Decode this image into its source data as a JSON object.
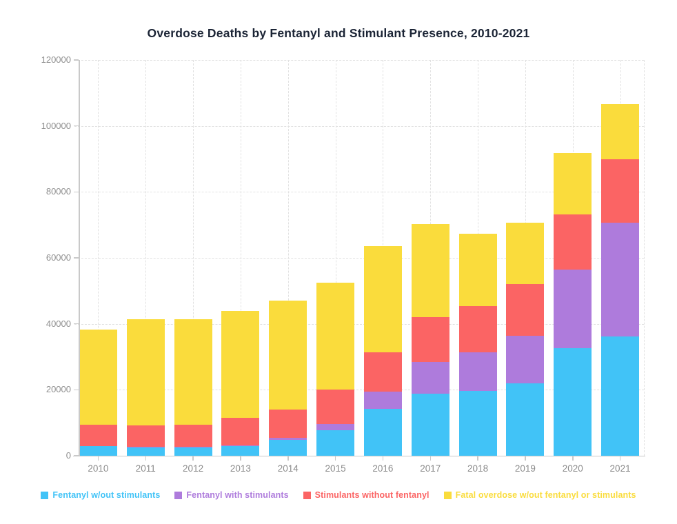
{
  "title": "Overdose Deaths by Fentanyl and Stimulant Presence, 2010-2021",
  "colors": {
    "fentanyl_without_stimulants": "#41C3F7",
    "fentanyl_with_stimulants": "#AE7BDC",
    "stimulants_without_fentanyl": "#FB6464",
    "neither": "#FADC3C",
    "title_text": "#1B2435",
    "axis_text": "#8E8E8E",
    "axis_line": "#C9C9C9",
    "grid_line": "#E1E1E1",
    "background": "#FFFFFF"
  },
  "y_axis": {
    "ticks": [
      0,
      20000,
      40000,
      60000,
      80000,
      100000,
      120000
    ],
    "max": 120000
  },
  "x_axis": {
    "categories": [
      "2010",
      "2011",
      "2012",
      "2013",
      "2014",
      "2015",
      "2016",
      "2017",
      "2018",
      "2019",
      "2020",
      "2021"
    ]
  },
  "legend": [
    {
      "label": "Fentanyl w/out stimulants",
      "color": "#41C3F7"
    },
    {
      "label": "Fentanyl with stimulants",
      "color": "#AE7BDC"
    },
    {
      "label": "Stimulants without fentanyl",
      "color": "#FB6464"
    },
    {
      "label": "Fatal overdose w/out fentanyl or stimulants",
      "color": "#FADC3C"
    }
  ],
  "chart_data": {
    "type": "bar",
    "stacked": true,
    "title": "Overdose Deaths by Fentanyl and Stimulant Presence, 2010-2021",
    "xlabel": "",
    "ylabel": "",
    "ylim": [
      0,
      120000
    ],
    "grid": true,
    "legend_position": "bottom",
    "categories": [
      "2010",
      "2011",
      "2012",
      "2013",
      "2014",
      "2015",
      "2016",
      "2017",
      "2018",
      "2019",
      "2020",
      "2021"
    ],
    "series": [
      {
        "name": "Fentanyl w/out stimulants",
        "color": "#41C3F7",
        "values": [
          2900,
          2520,
          2430,
          2860,
          4840,
          7680,
          14260,
          18890,
          19740,
          21860,
          32720,
          36170
        ]
      },
      {
        "name": "Fentanyl with stimulants",
        "color": "#AE7BDC",
        "values": [
          110,
          150,
          200,
          250,
          700,
          1900,
          5150,
          9580,
          11600,
          14500,
          23800,
          34430
        ]
      },
      {
        "name": "Stimulants without fentanyl",
        "color": "#FB6464",
        "values": [
          6400,
          6530,
          6700,
          8300,
          8400,
          10400,
          12020,
          13530,
          14120,
          15610,
          16590,
          19350
        ]
      },
      {
        "name": "Fatal overdose w/out fentanyl or stimulants",
        "color": "#FADC3C",
        "values": [
          28919,
          32140,
          32172,
          32572,
          33115,
          32424,
          32202,
          28237,
          21907,
          18660,
          18689,
          16749
        ]
      }
    ],
    "totals": [
      38329,
      41340,
      41502,
      43982,
      47055,
      52404,
      63632,
      70237,
      67367,
      70630,
      91799,
      106699
    ]
  }
}
